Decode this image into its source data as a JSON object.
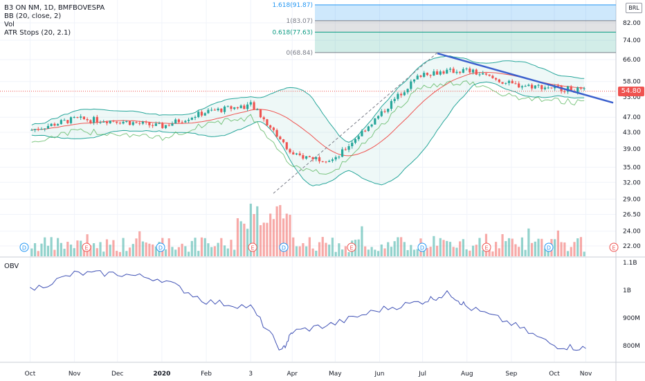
{
  "legend": {
    "symbol": "B3 ON NM, 1D, BMFBOVESPA",
    "bb": "BB (20, close, 2)",
    "vol": "Vol",
    "atr": "ATR Stops (20, 2.1)"
  },
  "obv_label": "OBV",
  "currency": "BRL",
  "last_price": "54.80",
  "fib_levels": [
    {
      "label": "1.618(91.87)",
      "value": 91.87,
      "color": "#2196f3"
    },
    {
      "label": "1(83.07)",
      "value": 83.07,
      "color": "#787b86"
    },
    {
      "label": "0.618(77.63)",
      "value": 77.63,
      "color": "#089981"
    },
    {
      "label": "0(68.84)",
      "value": 68.84,
      "color": "#787b86"
    }
  ],
  "colors": {
    "up": "#26a69a",
    "down": "#ef5350",
    "bb_mid": "#ef5350",
    "bb_band": "#26a69a",
    "obv": "#3f51b5",
    "trendline": "#3a5fcd"
  },
  "chart_data": [
    {
      "type": "line",
      "title": "B3 ON NM, 1D, BMFBOVESPA",
      "y_scale": "log",
      "ylim": [
        21,
        92
      ],
      "y_ticks": [
        "22.00",
        "24.00",
        "26.50",
        "29.00",
        "32.00",
        "35.00",
        "39.00",
        "43.00",
        "47.00",
        "53.00",
        "58.00",
        "66.00",
        "74.00",
        "82.00"
      ],
      "x_ticks": [
        "Oct",
        "Nov",
        "Dec",
        "2020",
        "Feb",
        "3",
        "Apr",
        "May",
        "Jun",
        "Jul",
        "Aug",
        "Sep",
        "Oct",
        "Nov"
      ],
      "x": [
        "2019-10-01",
        "2019-11-01",
        "2019-12-01",
        "2020-01-01",
        "2020-02-01",
        "2020-03-03",
        "2020-04-01",
        "2020-05-01",
        "2020-06-01",
        "2020-07-01",
        "2020-08-01",
        "2020-09-01",
        "2020-10-01",
        "2020-10-23"
      ],
      "series": [
        {
          "values": [
            43.5,
            46.5,
            46.0,
            44.5,
            48.5,
            50.5,
            37.5,
            36.5,
            47.5,
            61.0,
            62.0,
            57.0,
            56.0,
            54.8
          ]
        }
      ],
      "event_markers": [
        "D",
        "E",
        "D",
        "E",
        "D",
        "E",
        "D",
        "E",
        "D",
        "E"
      ],
      "grid": true
    },
    {
      "type": "line",
      "title": "OBV",
      "y_ticks": [
        "800M",
        "900M",
        "1B",
        "1.1B"
      ],
      "x": [
        "2019-10-01",
        "2019-11-01",
        "2019-12-01",
        "2020-01-01",
        "2020-02-01",
        "2020-03-03",
        "2020-03-25",
        "2020-04-01",
        "2020-05-01",
        "2020-06-01",
        "2020-07-01",
        "2020-07-20",
        "2020-08-01",
        "2020-09-01",
        "2020-10-01",
        "2020-10-23"
      ],
      "series": [
        {
          "name": "OBV",
          "values": [
            1000,
            1060,
            1060,
            1040,
            960,
            940,
            780,
            850,
            880,
            930,
            960,
            990,
            940,
            880,
            800,
            790
          ]
        }
      ],
      "grid": true
    }
  ]
}
